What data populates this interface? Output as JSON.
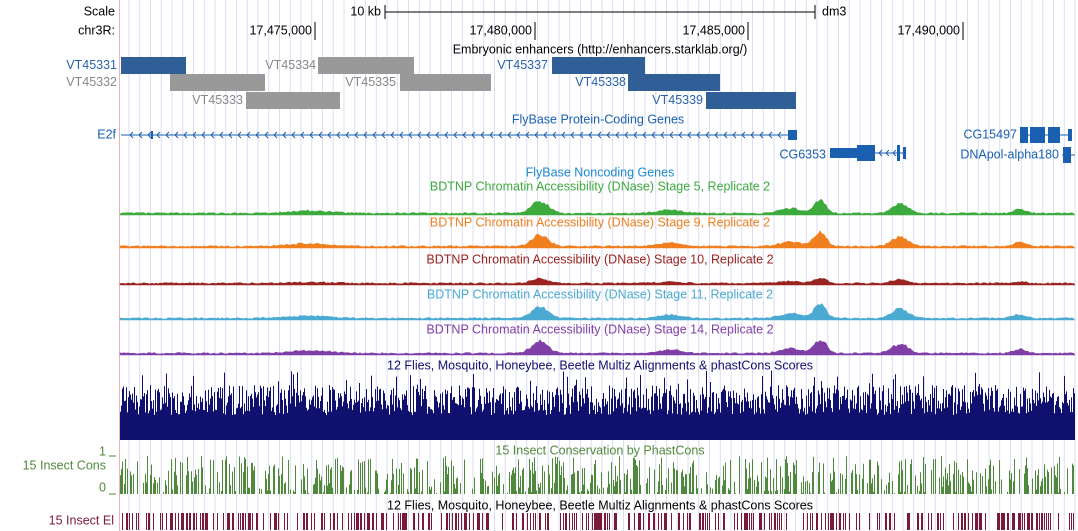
{
  "scale": {
    "label": "Scale",
    "bar": "10 kb",
    "assembly": "dm3"
  },
  "position": {
    "chrom": "chr3R:",
    "ticks": [
      "17,475,000",
      "17,480,000",
      "17,485,000",
      "17,490,000"
    ]
  },
  "enhancers": {
    "title": "Embryonic enhancers (http://enhancers.starklab.org/)",
    "items": [
      {
        "name": "VT45331",
        "color": "#2f5f96"
      },
      {
        "name": "VT45332",
        "color": "#999999"
      },
      {
        "name": "VT45333",
        "color": "#999999"
      },
      {
        "name": "VT45334",
        "color": "#999999"
      },
      {
        "name": "VT45335",
        "color": "#999999"
      },
      {
        "name": "VT45337",
        "color": "#2f5f96"
      },
      {
        "name": "VT45338",
        "color": "#2f5f96"
      },
      {
        "name": "VT45339",
        "color": "#2f5f96"
      }
    ]
  },
  "protein_genes": {
    "title": "FlyBase Protein-Coding Genes",
    "color": "#1a5fb0",
    "genes": [
      "E2f",
      "CG6353",
      "CG15497",
      "DNApol-alpha180"
    ]
  },
  "noncoding_genes": {
    "title": "FlyBase Noncoding Genes"
  },
  "dnase_tracks": [
    {
      "title": "BDTNP Chromatin Accessibility (DNase) Stage 5, Replicate 2",
      "color": "#3daa3d"
    },
    {
      "title": "BDTNP Chromatin Accessibility (DNase) Stage 9, Replicate 2",
      "color": "#f07f1f"
    },
    {
      "title": "BDTNP Chromatin Accessibility (DNase) Stage 10, Replicate 2",
      "color": "#99231f"
    },
    {
      "title": "BDTNP Chromatin Accessibility (DNase) Stage 11, Replicate 2",
      "color": "#4aaad2"
    },
    {
      "title": "BDTNP Chromatin Accessibility (DNase) Stage 14, Replicate 2",
      "color": "#7f3fa7"
    }
  ],
  "multiz": {
    "title": "12 Flies, Mosquito, Honeybee, Beetle Multiz Alignments & phastCons Scores",
    "color": "#10106e"
  },
  "cons": {
    "label": "15 Insect Cons",
    "title": "15 Insect Conservation by PhastCons",
    "yticks": [
      1,
      0
    ],
    "color": "#4f8a3c"
  },
  "elements": {
    "label": "15 Insect El",
    "title": "12 Flies, Mosquito, Honeybee, Beetle Multiz Alignments & phastCons Scores",
    "color": "#7a1a3a"
  }
}
